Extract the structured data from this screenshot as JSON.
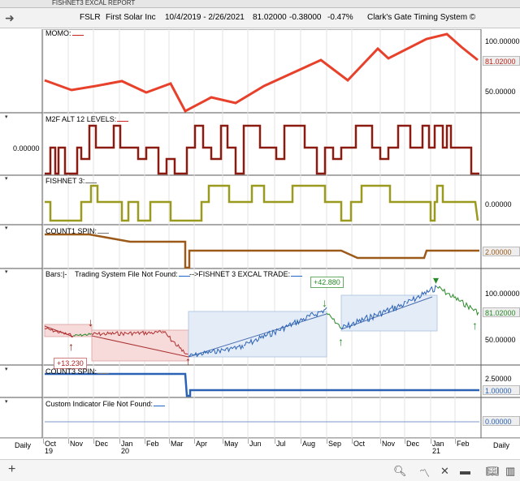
{
  "window_title": "FISHNET3 EXCAL REPORT",
  "header": {
    "symbol": "FSLR",
    "company": "First Solar Inc",
    "date_range": "10/4/2019 - 2/26/2021",
    "price": "81.02000",
    "change": "-0.38000",
    "change_pct": "-0.47%",
    "system": "Clark's Gate Timing System ©"
  },
  "panes": {
    "momo": {
      "label": "MOMO:",
      "axis_top": "100.00000",
      "value": "81.02000",
      "axis_bottom": "50.00000",
      "color": "#e8412b"
    },
    "m2f": {
      "label": "M2F ALT 12 LEVELS:",
      "left_value": "0.00000",
      "color": "#8b1a10"
    },
    "fishnet": {
      "label": "FISHNET 3:",
      "value": "0.00000",
      "color": "#9a9a1e"
    },
    "count1": {
      "label": "COUNT1 SPIN:",
      "value": "2.00000",
      "color": "#9c5a1a"
    },
    "bars": {
      "label_bars": "Bars:",
      "label_system": "Trading System File Not Found:",
      "label_trade": "-->FISHNET 3 EXCAL TRADE:",
      "axis_top": "100.00000",
      "value": "81.02000",
      "axis_bottom": "50.00000",
      "note_gain": "+42.880",
      "note_loss": "+13.230"
    },
    "count3": {
      "label": "COUNT3 SPIN:",
      "axis_top": "2.50000",
      "value": "1.00000",
      "color": "#2b62b5"
    },
    "custom": {
      "label": "Custom Indicator File Not Found:",
      "value": "0.00000"
    }
  },
  "xaxis": {
    "period_label": "Daily",
    "months": [
      "Oct",
      "Nov",
      "Dec",
      "Jan",
      "Feb",
      "Mar",
      "Apr",
      "May",
      "Jun",
      "Jul",
      "Aug",
      "Sep",
      "Oct",
      "Nov",
      "Dec",
      "Jan",
      "Feb"
    ],
    "years": [
      "19",
      "20",
      "21"
    ]
  },
  "bottombar": {
    "icons": [
      "plus-icon",
      "search-icon",
      "line-chart-icon",
      "tools-icon",
      "panel-icon",
      "book-icon",
      "layout-icon"
    ]
  }
}
